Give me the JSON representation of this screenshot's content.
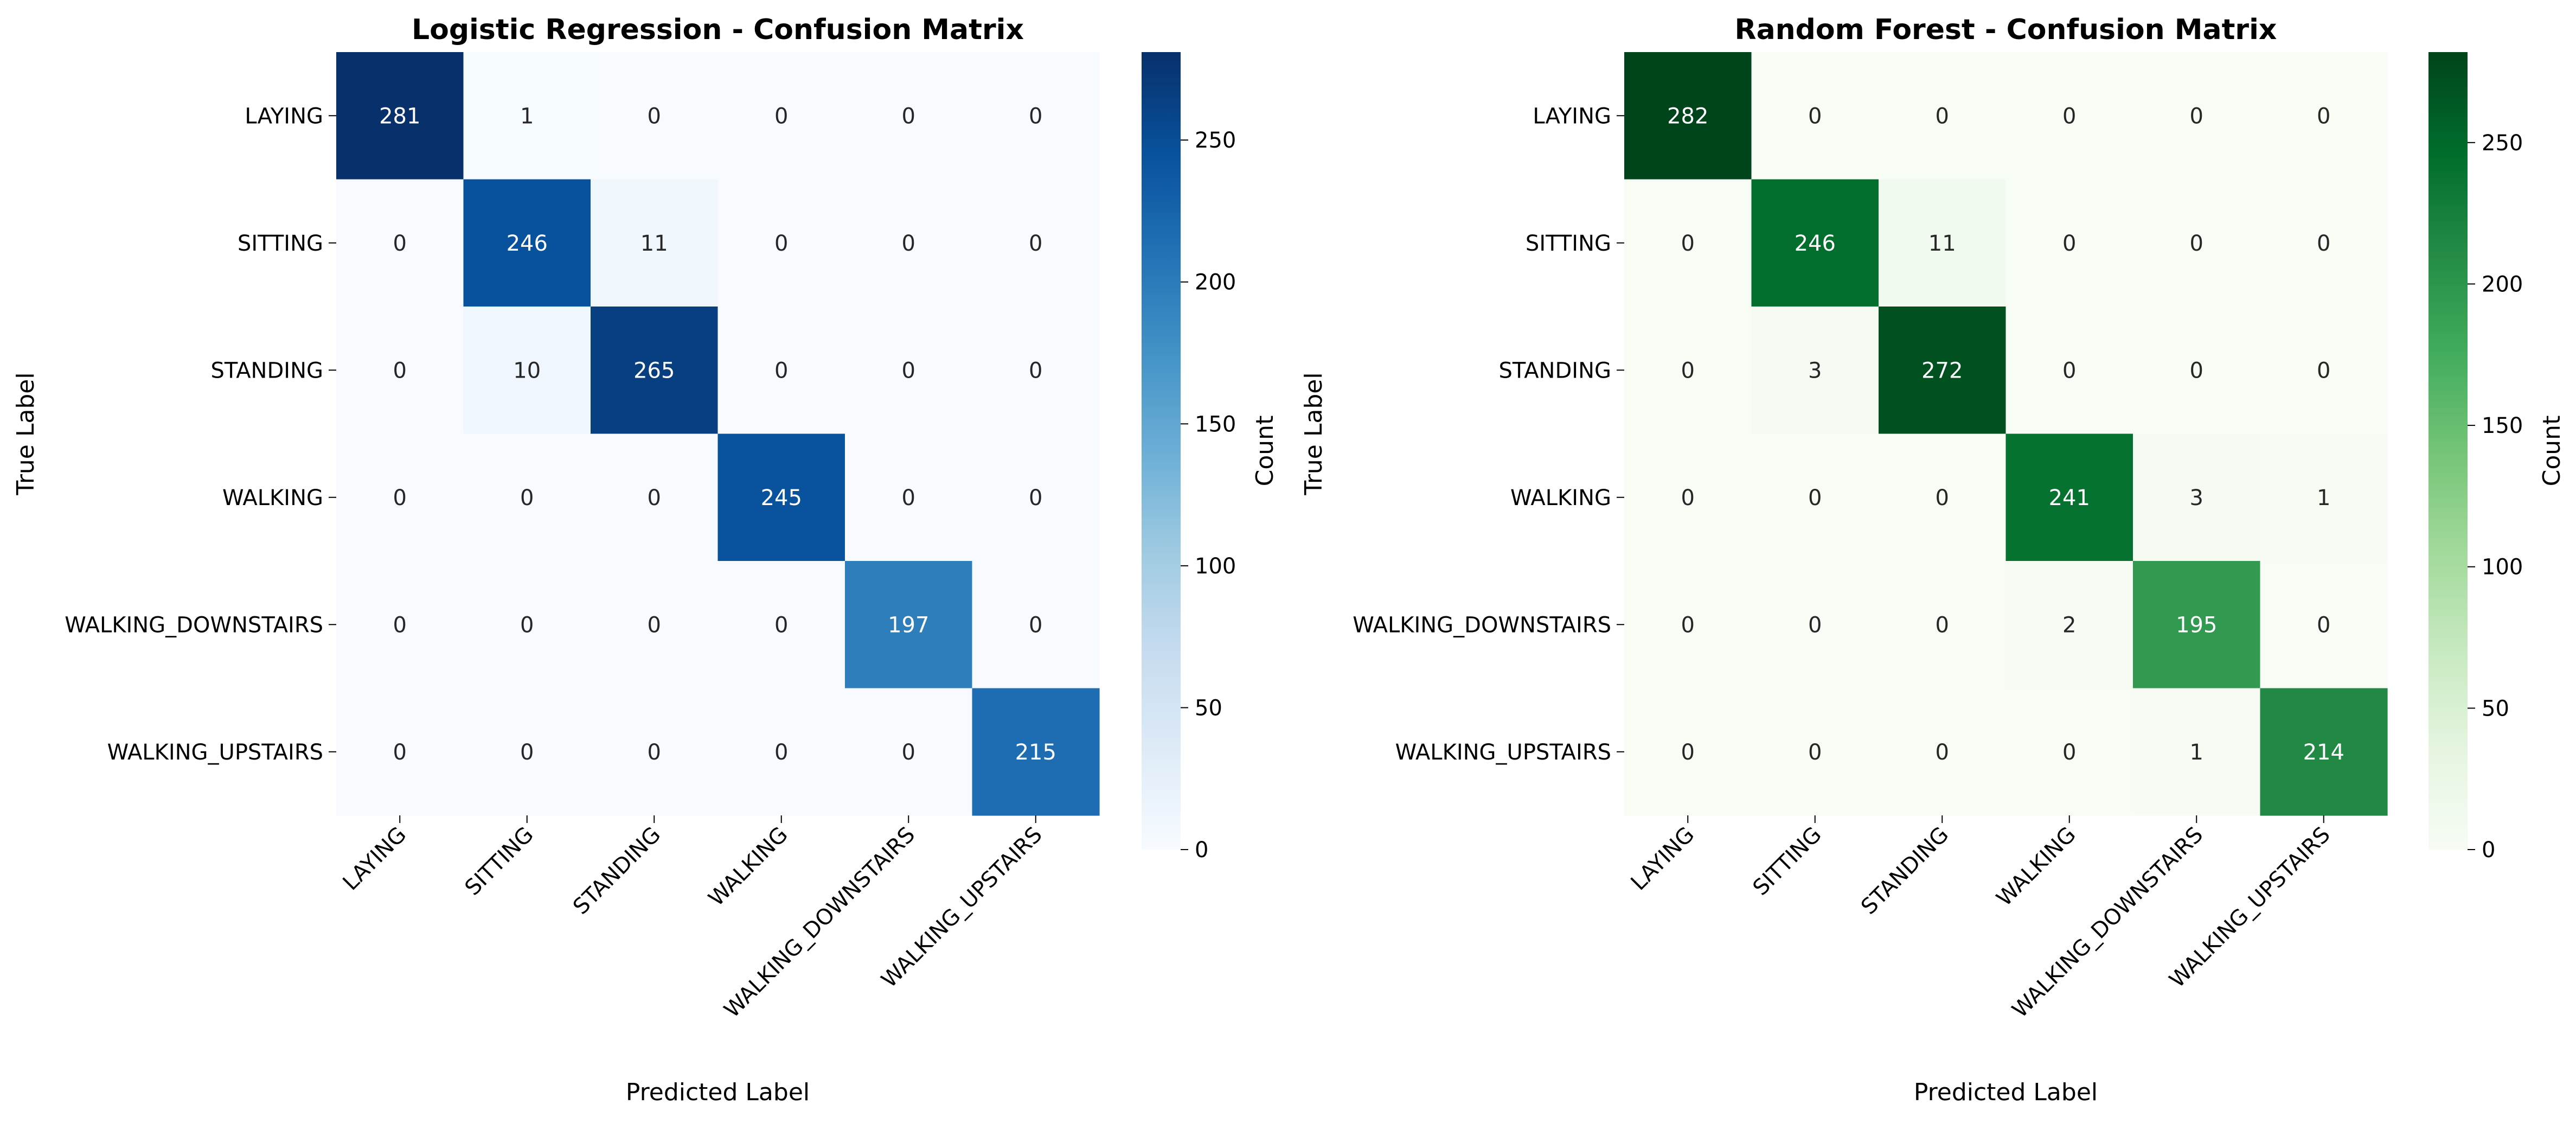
{
  "chart_data": [
    {
      "type": "heatmap",
      "title": "Logistic Regression - Confusion Matrix",
      "xlabel": "Predicted Label",
      "ylabel": "True Label",
      "x_categories": [
        "LAYING",
        "SITTING",
        "STANDING",
        "WALKING",
        "WALKING_DOWNSTAIRS",
        "WALKING_UPSTAIRS"
      ],
      "y_categories": [
        "LAYING",
        "SITTING",
        "STANDING",
        "WALKING",
        "WALKING_DOWNSTAIRS",
        "WALKING_UPSTAIRS"
      ],
      "values": [
        [
          281,
          1,
          0,
          0,
          0,
          0
        ],
        [
          0,
          246,
          11,
          0,
          0,
          0
        ],
        [
          0,
          10,
          265,
          0,
          0,
          0
        ],
        [
          0,
          0,
          0,
          245,
          0,
          0
        ],
        [
          0,
          0,
          0,
          0,
          197,
          0
        ],
        [
          0,
          0,
          0,
          0,
          0,
          215
        ]
      ],
      "colormap": "Blues",
      "color_low": "#f7fbff",
      "color_high": "#08306b",
      "colorbar": {
        "label": "Count",
        "min": 0,
        "max": 281,
        "ticks": [
          0,
          50,
          100,
          150,
          200,
          250
        ]
      }
    },
    {
      "type": "heatmap",
      "title": "Random Forest - Confusion Matrix",
      "xlabel": "Predicted Label",
      "ylabel": "True Label",
      "x_categories": [
        "LAYING",
        "SITTING",
        "STANDING",
        "WALKING",
        "WALKING_DOWNSTAIRS",
        "WALKING_UPSTAIRS"
      ],
      "y_categories": [
        "LAYING",
        "SITTING",
        "STANDING",
        "WALKING",
        "WALKING_DOWNSTAIRS",
        "WALKING_UPSTAIRS"
      ],
      "values": [
        [
          282,
          0,
          0,
          0,
          0,
          0
        ],
        [
          0,
          246,
          11,
          0,
          0,
          0
        ],
        [
          0,
          3,
          272,
          0,
          0,
          0
        ],
        [
          0,
          0,
          0,
          241,
          3,
          1
        ],
        [
          0,
          0,
          0,
          2,
          195,
          0
        ],
        [
          0,
          0,
          0,
          0,
          1,
          214
        ]
      ],
      "colormap": "Greens",
      "color_low": "#f7fcf5",
      "color_high": "#00441b",
      "colorbar": {
        "label": "Count",
        "min": 0,
        "max": 282,
        "ticks": [
          0,
          50,
          100,
          150,
          200,
          250
        ]
      }
    }
  ]
}
